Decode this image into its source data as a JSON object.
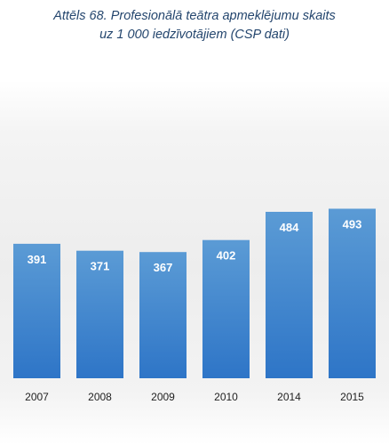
{
  "chart_data": {
    "type": "bar",
    "title": "Attēls 68. Profesionālā teātra apmeklējumu skaits",
    "subtitle": "uz 1 000 iedzīvotājiem (CSP dati)",
    "categories": [
      "2007",
      "2008",
      "2009",
      "2010",
      "2014",
      "2015"
    ],
    "values": [
      391,
      371,
      367,
      402,
      484,
      493
    ],
    "data_labels": [
      "391",
      "371",
      "367",
      "402",
      "484",
      "493"
    ],
    "xlabel": "",
    "ylabel": "",
    "ylim": [
      0,
      1100
    ],
    "grid": false,
    "legend": "none",
    "bar_color_top": "#5b9bd5",
    "bar_color_bottom": "#2e75c7"
  }
}
